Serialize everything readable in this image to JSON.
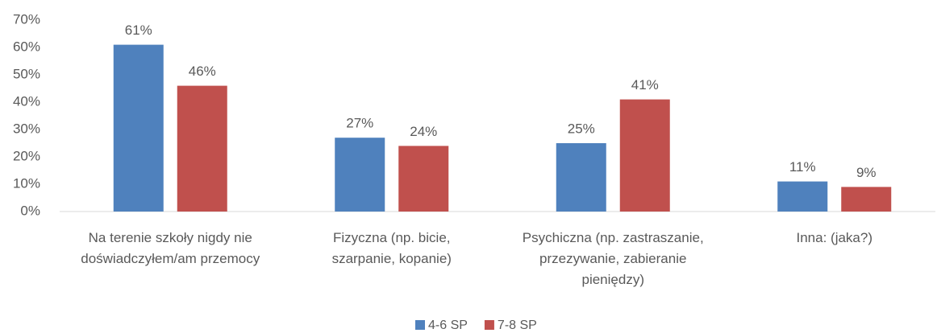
{
  "chart_data": {
    "type": "bar",
    "categories": [
      "Na terenie szkoły nigdy nie doświadczyłem/am przemocy",
      "Fizyczna (np. bicie, szarpanie, kopanie)",
      "Psychiczna (np. zastraszanie, przezywanie, zabieranie pieniędzy)",
      "Inna: (jaka?)"
    ],
    "series": [
      {
        "name": "4-6 SP",
        "color": "#4f81bd",
        "values": [
          61,
          27,
          25,
          11
        ],
        "value_labels": [
          "61%",
          "27%",
          "25%",
          "11%"
        ]
      },
      {
        "name": "7-8 SP",
        "color": "#c0504d",
        "values": [
          46,
          24,
          41,
          9
        ],
        "value_labels": [
          "46%",
          "24%",
          "41%",
          "9%"
        ]
      }
    ],
    "ylim": [
      0,
      70
    ],
    "yticks": [
      {
        "value": 0,
        "label": "0%"
      },
      {
        "value": 10,
        "label": "10%"
      },
      {
        "value": 20,
        "label": "20%"
      },
      {
        "value": 30,
        "label": "30%"
      },
      {
        "value": 40,
        "label": "40%"
      },
      {
        "value": 50,
        "label": "50%"
      },
      {
        "value": 60,
        "label": "60%"
      },
      {
        "value": 70,
        "label": "70%"
      }
    ],
    "grid": false,
    "legend": "bottom"
  }
}
